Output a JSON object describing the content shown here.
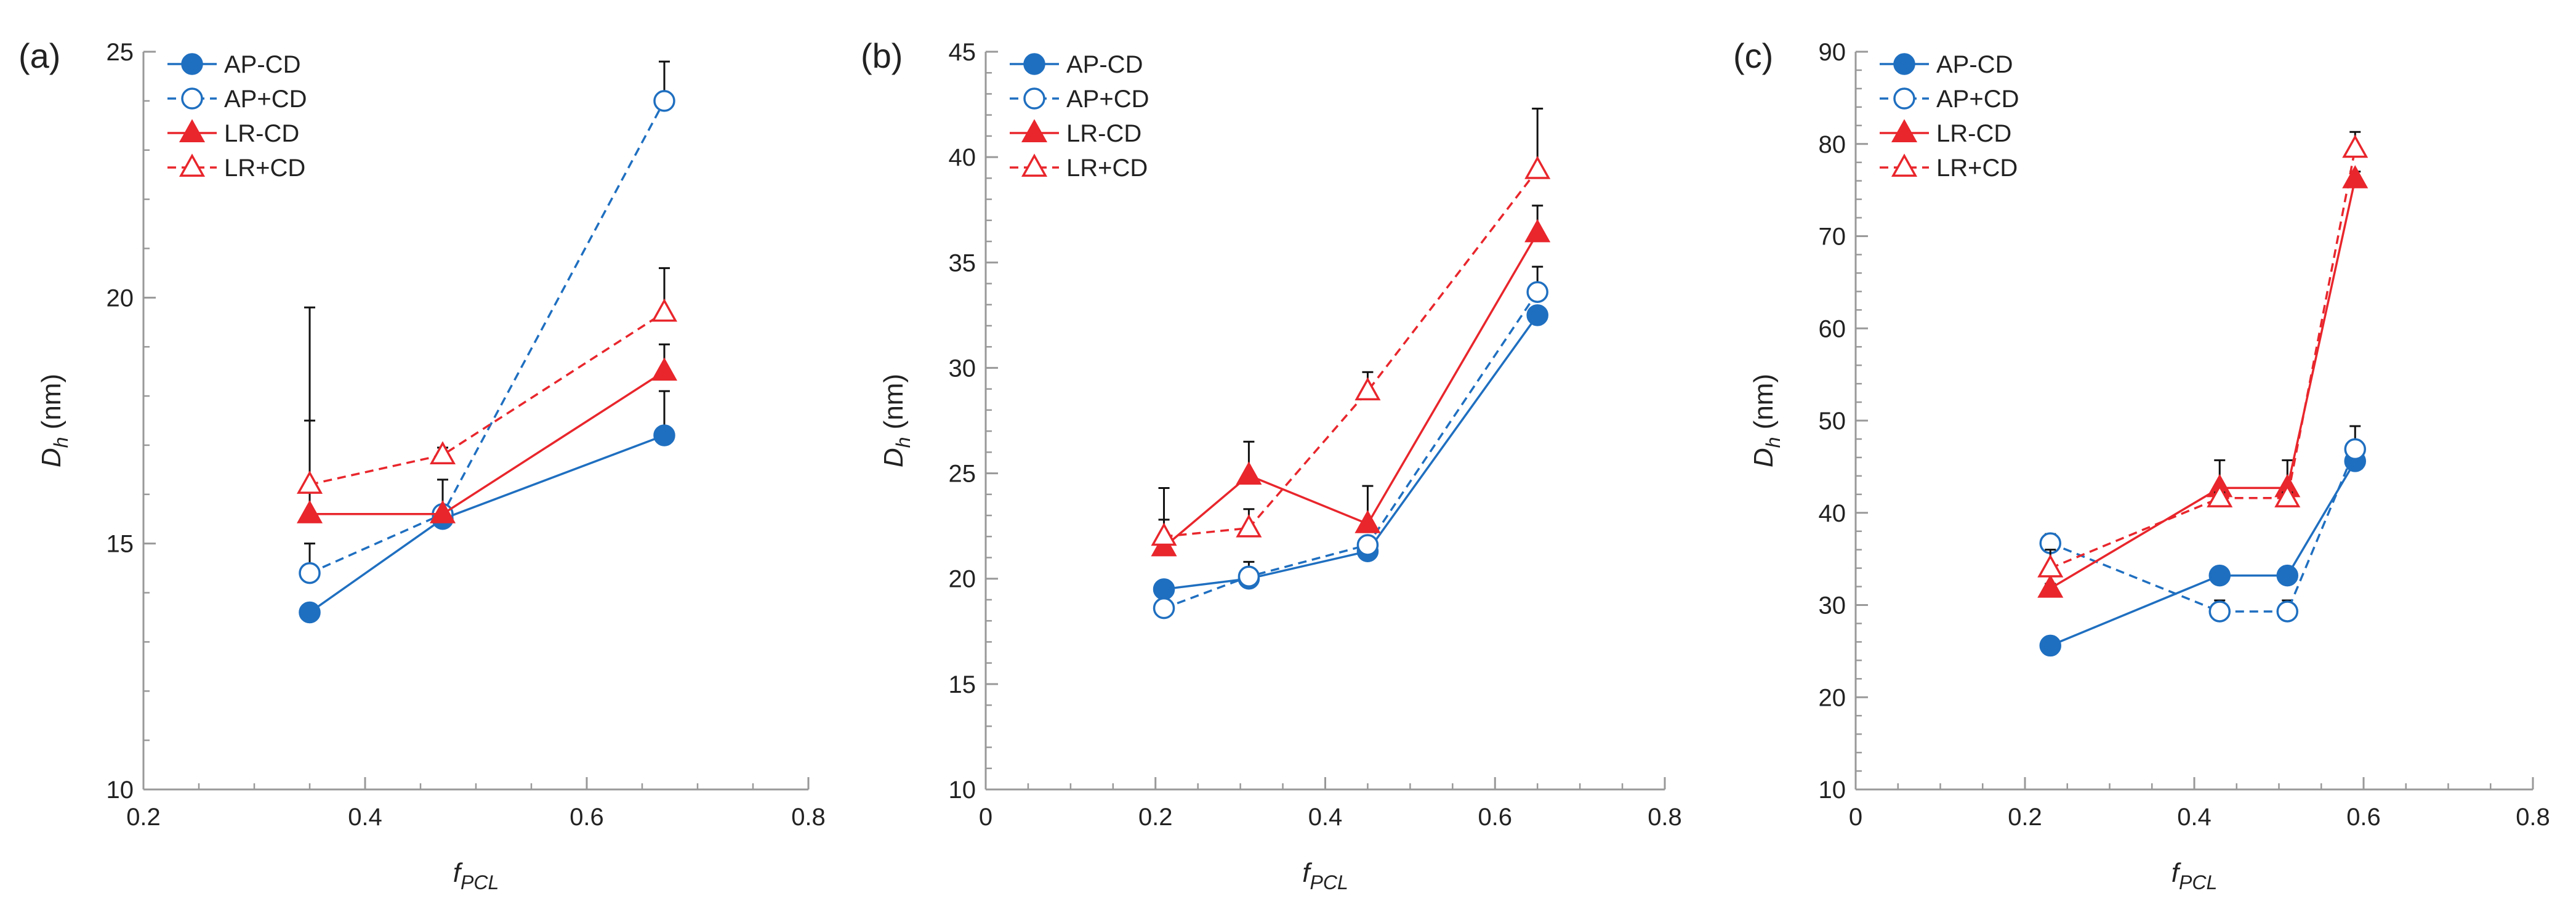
{
  "colors": {
    "blue": "#1f6fc0",
    "red": "#e8262c",
    "axis": "#999999",
    "errorbar": "#111111"
  },
  "chart_data": [
    {
      "type": "line",
      "panel_label": "(a)",
      "xlabel_main": "f",
      "xlabel_sub": "PCL",
      "ylabel_main": "D",
      "ylabel_sub": "h",
      "ylabel_unit": "(nm)",
      "xlim": [
        0.2,
        0.8
      ],
      "ylim": [
        10,
        25
      ],
      "x_ticks": [
        0.2,
        0.4,
        0.6,
        0.8
      ],
      "x_tick_labels": [
        "0.2",
        "0.4",
        "0.6",
        "0.8"
      ],
      "y_ticks": [
        10,
        15,
        20,
        25
      ],
      "y_tick_labels": [
        "10",
        "15",
        "20",
        "25"
      ],
      "x_minor_step": 0.05,
      "y_minor_step": 1,
      "legend_position": "top-left",
      "series": [
        {
          "name": "AP-CD",
          "color": "blue",
          "dashed": false,
          "marker": "circle",
          "filled": true,
          "x": [
            0.35,
            0.47,
            0.67
          ],
          "y": [
            13.6,
            15.5,
            17.2
          ],
          "err": [
            0.15,
            0.15,
            0.9
          ]
        },
        {
          "name": "AP+CD",
          "color": "blue",
          "dashed": true,
          "marker": "circle",
          "filled": false,
          "x": [
            0.35,
            0.47,
            0.67
          ],
          "y": [
            14.4,
            15.6,
            24.0
          ],
          "err": [
            0.6,
            0.7,
            0.8
          ]
        },
        {
          "name": "LR-CD",
          "color": "red",
          "dashed": false,
          "marker": "triangle",
          "filled": true,
          "x": [
            0.35,
            0.47,
            0.67
          ],
          "y": [
            15.6,
            15.6,
            18.5
          ],
          "err": [
            1.9,
            0.0,
            0.55
          ]
        },
        {
          "name": "LR+CD",
          "color": "red",
          "dashed": true,
          "marker": "triangle",
          "filled": false,
          "x": [
            0.35,
            0.47,
            0.67
          ],
          "y": [
            16.2,
            16.8,
            19.7
          ],
          "err": [
            3.6,
            0.15,
            0.9
          ]
        }
      ]
    },
    {
      "type": "line",
      "panel_label": "(b)",
      "xlabel_main": "f",
      "xlabel_sub": "PCL",
      "ylabel_main": "D",
      "ylabel_sub": "h",
      "ylabel_unit": "(nm)",
      "xlim": [
        0,
        0.8
      ],
      "ylim": [
        10,
        45
      ],
      "x_ticks": [
        0,
        0.2,
        0.4,
        0.6,
        0.8
      ],
      "x_tick_labels": [
        "0",
        "0.2",
        "0.4",
        "0.6",
        "0.8"
      ],
      "y_ticks": [
        10,
        15,
        20,
        25,
        30,
        35,
        40,
        45
      ],
      "y_tick_labels": [
        "10",
        "15",
        "20",
        "25",
        "30",
        "35",
        "40",
        "45"
      ],
      "x_minor_step": 0.05,
      "y_minor_step": 1,
      "legend_position": "top-left",
      "series": [
        {
          "name": "AP-CD",
          "color": "blue",
          "dashed": false,
          "marker": "circle",
          "filled": true,
          "x": [
            0.21,
            0.31,
            0.45,
            0.65
          ],
          "y": [
            19.5,
            20.0,
            21.3,
            32.5
          ],
          "err": [
            0.3,
            0.3,
            0.3,
            0.3
          ]
        },
        {
          "name": "AP+CD",
          "color": "blue",
          "dashed": true,
          "marker": "circle",
          "filled": false,
          "x": [
            0.21,
            0.31,
            0.45,
            0.65
          ],
          "y": [
            18.6,
            20.1,
            21.6,
            33.6
          ],
          "err": [
            0.3,
            0.7,
            0.4,
            1.2
          ]
        },
        {
          "name": "LR-CD",
          "color": "red",
          "dashed": false,
          "marker": "triangle",
          "filled": true,
          "x": [
            0.21,
            0.31,
            0.45,
            0.65
          ],
          "y": [
            21.5,
            24.9,
            22.6,
            36.4
          ],
          "err": [
            1.3,
            1.6,
            1.8,
            1.3
          ]
        },
        {
          "name": "LR+CD",
          "color": "red",
          "dashed": true,
          "marker": "triangle",
          "filled": false,
          "x": [
            0.21,
            0.31,
            0.45,
            0.65
          ],
          "y": [
            22.0,
            22.4,
            28.9,
            39.4
          ],
          "err": [
            2.3,
            0.9,
            0.9,
            2.9
          ]
        }
      ]
    },
    {
      "type": "line",
      "panel_label": "(c)",
      "xlabel_main": "f",
      "xlabel_sub": "PCL",
      "ylabel_main": "D",
      "ylabel_sub": "h",
      "ylabel_unit": "(nm)",
      "xlim": [
        0,
        0.8
      ],
      "ylim": [
        10,
        90
      ],
      "x_ticks": [
        0,
        0.2,
        0.4,
        0.6,
        0.8
      ],
      "x_tick_labels": [
        "0",
        "0.2",
        "0.4",
        "0.6",
        "0.8"
      ],
      "y_ticks": [
        10,
        20,
        30,
        40,
        50,
        60,
        70,
        80,
        90
      ],
      "y_tick_labels": [
        "10",
        "20",
        "30",
        "40",
        "50",
        "60",
        "70",
        "80",
        "90"
      ],
      "x_minor_step": 0.05,
      "y_minor_step": 2,
      "legend_position": "top-left",
      "series": [
        {
          "name": "AP-CD",
          "color": "blue",
          "dashed": false,
          "marker": "circle",
          "filled": true,
          "x": [
            0.23,
            0.43,
            0.51,
            0.59
          ],
          "y": [
            25.6,
            33.2,
            33.2,
            45.6
          ],
          "err": [
            0.5,
            0.5,
            0.5,
            0.8
          ]
        },
        {
          "name": "AP+CD",
          "color": "blue",
          "dashed": true,
          "marker": "circle",
          "filled": false,
          "x": [
            0.23,
            0.43,
            0.51,
            0.59
          ],
          "y": [
            36.7,
            29.3,
            29.3,
            46.9
          ],
          "err": [
            1.0,
            1.2,
            1.2,
            2.5
          ]
        },
        {
          "name": "LR-CD",
          "color": "red",
          "dashed": false,
          "marker": "triangle",
          "filled": true,
          "x": [
            0.23,
            0.43,
            0.51,
            0.59
          ],
          "y": [
            31.8,
            42.7,
            42.7,
            76.2
          ],
          "err": [
            0.5,
            3.0,
            3.0,
            0.8
          ]
        },
        {
          "name": "LR+CD",
          "color": "red",
          "dashed": true,
          "marker": "triangle",
          "filled": false,
          "x": [
            0.23,
            0.43,
            0.51,
            0.59
          ],
          "y": [
            34.0,
            41.6,
            41.6,
            79.5
          ],
          "err": [
            2.0,
            0.6,
            0.6,
            1.8
          ]
        }
      ]
    }
  ]
}
